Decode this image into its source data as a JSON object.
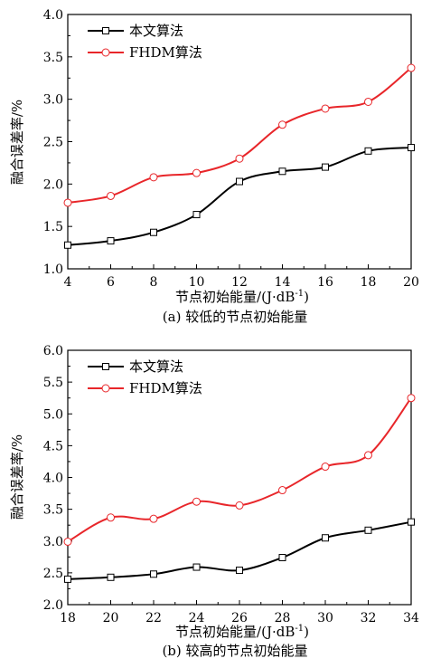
{
  "chart_data": [
    {
      "type": "line",
      "title": "",
      "caption": "(a) 较低的节点初始能量",
      "xlabel": "节点初始能量/(J·dB",
      "xlabel_sup": "-1",
      "xlabel_end": ")",
      "ylabel": "融合误差率/%",
      "x": [
        4,
        6,
        8,
        10,
        12,
        14,
        16,
        18,
        20
      ],
      "xlim": [
        4,
        20
      ],
      "xticks": [
        "4",
        "6",
        "8",
        "10",
        "12",
        "14",
        "16",
        "18",
        "20"
      ],
      "ylim": [
        1.0,
        4.0
      ],
      "yticks": [
        "1.0",
        "1.5",
        "2.0",
        "2.5",
        "3.0",
        "3.5",
        "4.0"
      ],
      "grid": false,
      "legend_position": "top-left",
      "series": [
        {
          "name": "本文算法",
          "marker": "square",
          "color": "#000000",
          "values": [
            1.28,
            1.33,
            1.43,
            1.64,
            2.03,
            2.15,
            2.2,
            2.39,
            2.43
          ]
        },
        {
          "name": "FHDM算法",
          "marker": "circle",
          "color": "#e8262a",
          "values": [
            1.78,
            1.86,
            2.08,
            2.13,
            2.3,
            2.7,
            2.89,
            2.97,
            3.37
          ]
        }
      ]
    },
    {
      "type": "line",
      "title": "",
      "caption": "(b) 较高的节点初始能量",
      "xlabel": "节点初始能量/(J·dB",
      "xlabel_sup": "-1",
      "xlabel_end": ")",
      "ylabel": "融合误差率/%",
      "x": [
        18,
        20,
        22,
        24,
        26,
        28,
        30,
        32,
        34
      ],
      "xlim": [
        18,
        34
      ],
      "xticks": [
        "18",
        "20",
        "22",
        "24",
        "26",
        "28",
        "30",
        "32",
        "34"
      ],
      "ylim": [
        2.0,
        6.0
      ],
      "yticks": [
        "2.0",
        "2.5",
        "3.0",
        "3.5",
        "4.0",
        "4.5",
        "5.0",
        "5.5",
        "6.0"
      ],
      "grid": false,
      "legend_position": "top-left",
      "series": [
        {
          "name": "本文算法",
          "marker": "square",
          "color": "#000000",
          "values": [
            2.4,
            2.43,
            2.48,
            2.59,
            2.54,
            2.74,
            3.05,
            3.17,
            3.3
          ]
        },
        {
          "name": "FHDM算法",
          "marker": "circle",
          "color": "#e8262a",
          "values": [
            2.99,
            3.37,
            3.35,
            3.62,
            3.56,
            3.8,
            4.17,
            4.35,
            5.25
          ]
        }
      ]
    }
  ]
}
